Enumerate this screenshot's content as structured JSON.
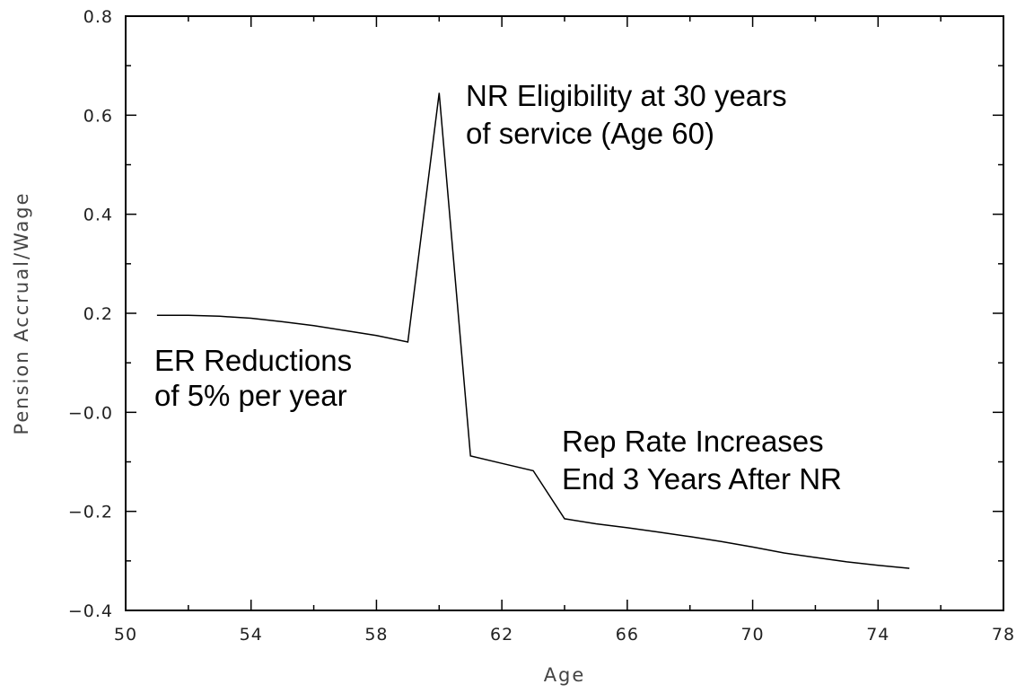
{
  "chart_data": {
    "type": "line",
    "title": "",
    "xlabel": "Age",
    "ylabel": "Pension Accrual/Wage",
    "xlim": [
      50,
      78
    ],
    "ylim": [
      -0.4,
      0.8
    ],
    "x_ticks": [
      50,
      54,
      58,
      62,
      66,
      70,
      74,
      78
    ],
    "x_tick_labels": [
      "50",
      "54",
      "58",
      "62",
      "66",
      "70",
      "74",
      "78"
    ],
    "y_ticks": [
      -0.4,
      -0.2,
      0.0,
      0.2,
      0.4,
      0.6,
      0.8
    ],
    "y_tick_labels": [
      "−0.4",
      "−0.2",
      "−0.0",
      "0.2",
      "0.4",
      "0.6",
      "0.8"
    ],
    "grid": false,
    "legend": "none",
    "series": [
      {
        "x": [
          51,
          52,
          53,
          54,
          55,
          56,
          57,
          58,
          59,
          60,
          61,
          62,
          63,
          64,
          65,
          66,
          67,
          68,
          69,
          70,
          71,
          72,
          73,
          74,
          75
        ],
        "y": [
          0.196,
          0.196,
          0.194,
          0.19,
          0.183,
          0.175,
          0.165,
          0.155,
          0.142,
          0.645,
          -0.088,
          -0.103,
          -0.118,
          -0.215,
          -0.225,
          -0.233,
          -0.242,
          -0.251,
          -0.261,
          -0.272,
          -0.284,
          -0.293,
          -0.302,
          -0.309,
          -0.315
        ]
      }
    ],
    "annotations": [
      {
        "lines": [
          "NR Eligibility at 30 years",
          "of service (Age 60)"
        ]
      },
      {
        "lines": [
          "ER Reductions",
          "of 5% per year"
        ]
      },
      {
        "lines": [
          "Rep Rate Increases",
          "End 3 Years After NR"
        ]
      }
    ]
  }
}
